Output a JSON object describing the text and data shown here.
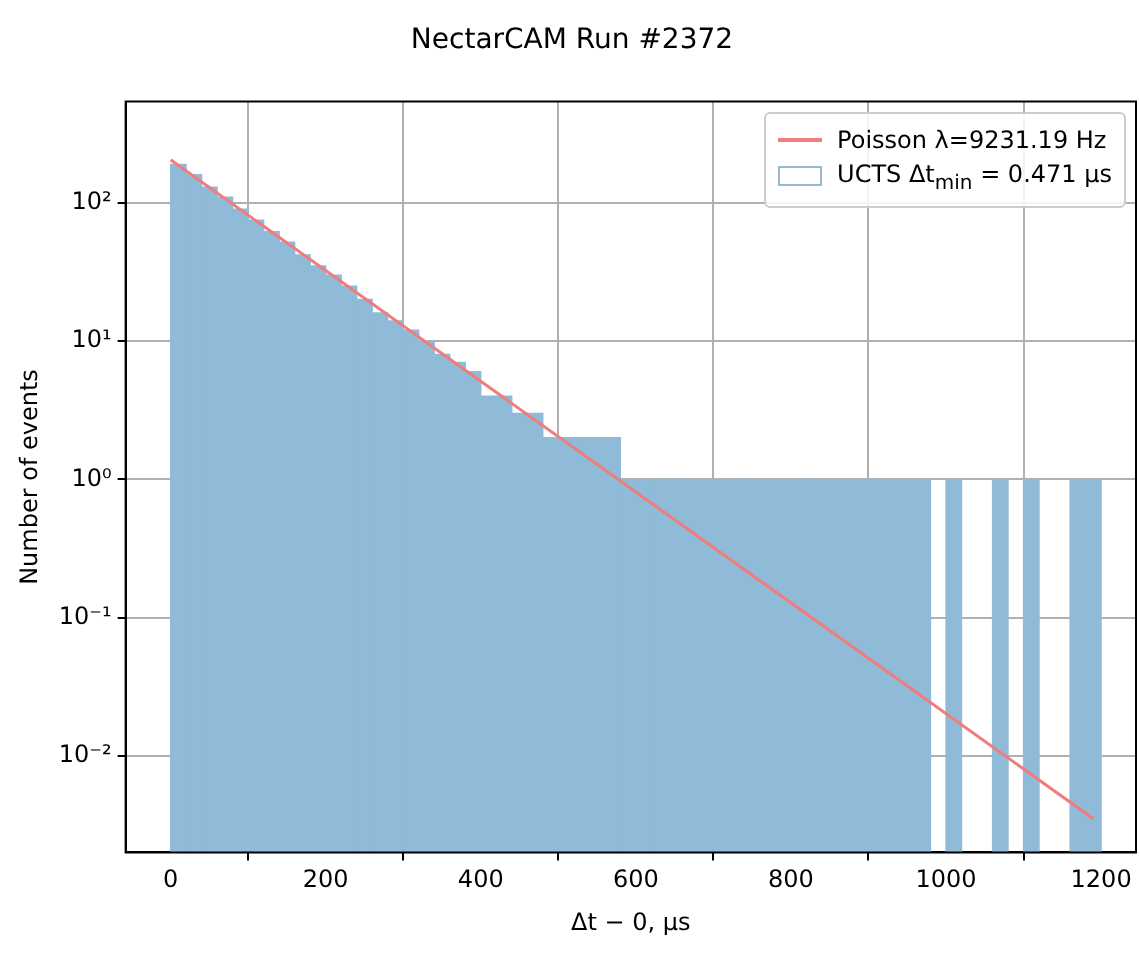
{
  "chart_data": {
    "type": "histogram",
    "title": "NectarCAM Run #2372",
    "xlabel": "Δt − 0, μs",
    "ylabel": "Number of events",
    "series": [
      {
        "type": "line",
        "name": "Poisson λ=9231.19 Hz",
        "color": "#f07c7c",
        "x": [
          0,
          1190
        ],
        "values": [
          205,
          0.0035
        ]
      },
      {
        "name": "UCTS Δt$_{min}$ = 0.471 μs",
        "color": "#8fbbd9",
        "bins": [
          0,
          20,
          40,
          60,
          80,
          100,
          120,
          140,
          160,
          180,
          200,
          220,
          240,
          260,
          280,
          300,
          320,
          340,
          360,
          380,
          400,
          420,
          440,
          460,
          480,
          500,
          520,
          540,
          560,
          580,
          600,
          620,
          640,
          660,
          680,
          700,
          720,
          740,
          760,
          780,
          800,
          820,
          840,
          860,
          880,
          900,
          920,
          940,
          960,
          980,
          1000,
          1020,
          1040,
          1060,
          1080,
          1100,
          1120,
          1140,
          1160,
          1180,
          1200
        ],
        "values": [
          190,
          160,
          130,
          110,
          90,
          75,
          62,
          52,
          42,
          35,
          30,
          25,
          20,
          16,
          14,
          12,
          10,
          8,
          7,
          6,
          4,
          4,
          3,
          3,
          2,
          2,
          2,
          2,
          2,
          1,
          1,
          1,
          1,
          1,
          1,
          1,
          1,
          1,
          1,
          1,
          1,
          1,
          1,
          1,
          1,
          1,
          1,
          1,
          1,
          null,
          1,
          null,
          null,
          1,
          null,
          1,
          null,
          null,
          1,
          1
        ]
      }
    ],
    "xlim": [
      -58,
      1245
    ],
    "xticks": [
      0,
      200,
      400,
      600,
      800,
      1000,
      1200
    ],
    "ylim": [
      0.002,
      540
    ],
    "yticks": [
      {
        "value": 0.01,
        "label": "10⁻²"
      },
      {
        "value": 0.1,
        "label": "10⁻¹"
      },
      {
        "value": 1,
        "label": "10⁰"
      },
      {
        "value": 10,
        "label": "10¹"
      },
      {
        "value": 100,
        "label": "10²"
      }
    ],
    "log": "y",
    "grid": true,
    "legend": "top right"
  }
}
